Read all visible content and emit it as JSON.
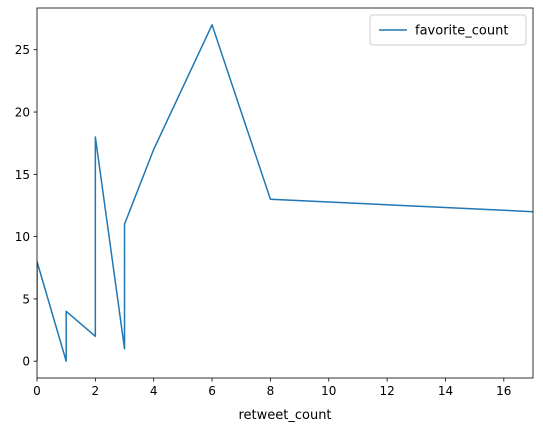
{
  "chart_data": {
    "type": "line",
    "title": "",
    "xlabel": "retweet_count",
    "ylabel": "",
    "xlim": [
      0,
      17
    ],
    "ylim": [
      -1.35,
      28.35
    ],
    "x_ticks": [
      0,
      2,
      4,
      6,
      8,
      10,
      12,
      14,
      16
    ],
    "y_ticks": [
      0,
      5,
      10,
      15,
      20,
      25
    ],
    "grid": false,
    "legend_position": "top-right",
    "series": [
      {
        "name": "favorite_count",
        "color": "#1f77b4",
        "x": [
          0,
          0,
          1,
          1,
          2,
          2,
          3,
          3,
          4,
          6,
          8,
          17
        ],
        "y": [
          0,
          8,
          0,
          4,
          2,
          18,
          1,
          11,
          17,
          27,
          13,
          12
        ]
      }
    ]
  }
}
